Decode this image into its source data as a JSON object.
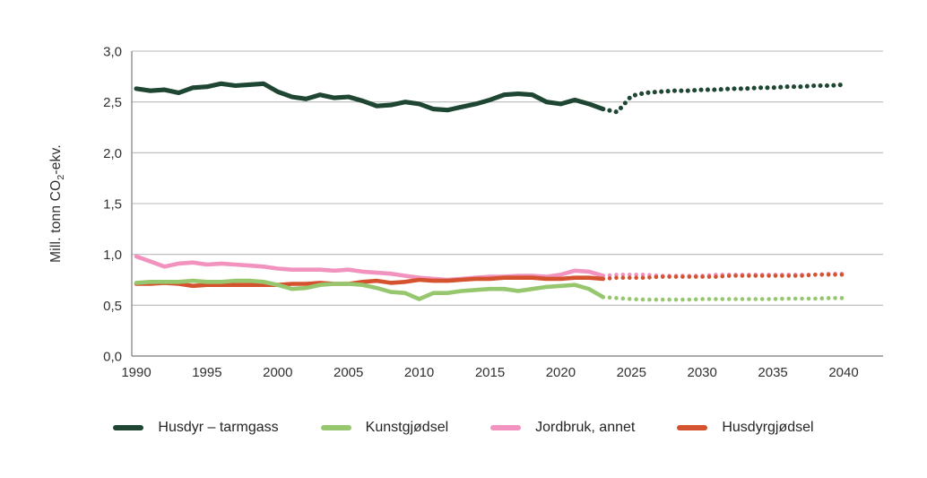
{
  "figure": {
    "y_axis_title": {
      "prefix": "Mill. tonn CO",
      "sub": "2",
      "suffix": "-ekv."
    }
  },
  "chart_data": {
    "type": "line",
    "title": "",
    "ylabel": "Mill. tonn CO2-ekv.",
    "xlabel": "",
    "ylim": [
      0,
      3
    ],
    "xlim": [
      1990,
      2040
    ],
    "grid": "horizontal",
    "gridline_color": "#b9b9b9",
    "axis_color": "#8f8f8f",
    "legend_position": "bottom",
    "decimal_style": "comma",
    "projection_style": "dotted lines from 2023 onward",
    "y_ticks": [
      {
        "v": 0.0,
        "label": "0,0"
      },
      {
        "v": 0.5,
        "label": "0,5"
      },
      {
        "v": 1.0,
        "label": "1,0"
      },
      {
        "v": 1.5,
        "label": "1,5"
      },
      {
        "v": 2.0,
        "label": "2,0"
      },
      {
        "v": 2.5,
        "label": "2,5"
      },
      {
        "v": 3.0,
        "label": "3,0"
      }
    ],
    "x_ticks": [
      {
        "v": 1990,
        "label": "1990"
      },
      {
        "v": 1995,
        "label": "1995"
      },
      {
        "v": 2000,
        "label": "2000"
      },
      {
        "v": 2005,
        "label": "2005"
      },
      {
        "v": 2010,
        "label": "2010"
      },
      {
        "v": 2015,
        "label": "2015"
      },
      {
        "v": 2020,
        "label": "2020"
      },
      {
        "v": 2025,
        "label": "2025"
      },
      {
        "v": 2030,
        "label": "2030"
      },
      {
        "v": 2035,
        "label": "2035"
      },
      {
        "v": 2040,
        "label": "2040"
      }
    ],
    "years_hist": [
      1990,
      1991,
      1992,
      1993,
      1994,
      1995,
      1996,
      1997,
      1998,
      1999,
      2000,
      2001,
      2002,
      2003,
      2004,
      2005,
      2006,
      2007,
      2008,
      2009,
      2010,
      2011,
      2012,
      2013,
      2014,
      2015,
      2016,
      2017,
      2018,
      2019,
      2020,
      2021,
      2022,
      2023
    ],
    "years_proj": [
      2023,
      2024,
      2025,
      2026,
      2027,
      2028,
      2029,
      2030,
      2031,
      2032,
      2033,
      2034,
      2035,
      2036,
      2037,
      2038,
      2039,
      2040
    ],
    "series": [
      {
        "name": "Husdyr – tarmgass",
        "color": "#1E4633",
        "hist": [
          2.63,
          2.61,
          2.62,
          2.59,
          2.64,
          2.65,
          2.68,
          2.66,
          2.67,
          2.68,
          2.6,
          2.55,
          2.53,
          2.57,
          2.54,
          2.55,
          2.51,
          2.46,
          2.47,
          2.5,
          2.48,
          2.43,
          2.42,
          2.45,
          2.48,
          2.52,
          2.57,
          2.58,
          2.57,
          2.5,
          2.48,
          2.52,
          2.48,
          2.43
        ],
        "proj": [
          2.43,
          2.4,
          2.56,
          2.59,
          2.6,
          2.61,
          2.61,
          2.62,
          2.62,
          2.63,
          2.63,
          2.64,
          2.64,
          2.65,
          2.65,
          2.66,
          2.66,
          2.67
        ]
      },
      {
        "name": "Kunstgjødsel",
        "color": "#96C76E",
        "hist": [
          0.72,
          0.73,
          0.73,
          0.73,
          0.74,
          0.73,
          0.73,
          0.74,
          0.74,
          0.73,
          0.7,
          0.66,
          0.67,
          0.7,
          0.71,
          0.71,
          0.7,
          0.67,
          0.63,
          0.62,
          0.56,
          0.62,
          0.62,
          0.64,
          0.65,
          0.66,
          0.66,
          0.64,
          0.66,
          0.68,
          0.69,
          0.7,
          0.66,
          0.58
        ],
        "proj": [
          0.58,
          0.57,
          0.56,
          0.555,
          0.555,
          0.555,
          0.555,
          0.56,
          0.56,
          0.56,
          0.56,
          0.56,
          0.56,
          0.565,
          0.565,
          0.565,
          0.57,
          0.57
        ]
      },
      {
        "name": "Jordbruk, annet",
        "color": "#F193BE",
        "hist": [
          0.98,
          0.93,
          0.88,
          0.91,
          0.92,
          0.9,
          0.91,
          0.9,
          0.89,
          0.88,
          0.86,
          0.85,
          0.85,
          0.85,
          0.84,
          0.85,
          0.83,
          0.82,
          0.81,
          0.79,
          0.77,
          0.76,
          0.75,
          0.76,
          0.77,
          0.78,
          0.78,
          0.79,
          0.79,
          0.78,
          0.8,
          0.84,
          0.83,
          0.79
        ],
        "proj": [
          0.79,
          0.8,
          0.8,
          0.8,
          0.79,
          0.79,
          0.79,
          0.79,
          0.8,
          0.8,
          0.8,
          0.8,
          0.8,
          0.8,
          0.8,
          0.8,
          0.81,
          0.81
        ]
      },
      {
        "name": "Husdyrgjødsel",
        "color": "#D5522F",
        "hist": [
          0.71,
          0.71,
          0.72,
          0.71,
          0.69,
          0.7,
          0.7,
          0.7,
          0.7,
          0.7,
          0.7,
          0.71,
          0.71,
          0.72,
          0.71,
          0.71,
          0.73,
          0.74,
          0.72,
          0.73,
          0.75,
          0.74,
          0.74,
          0.75,
          0.76,
          0.76,
          0.77,
          0.77,
          0.77,
          0.76,
          0.76,
          0.77,
          0.77,
          0.76
        ],
        "proj": [
          0.76,
          0.77,
          0.77,
          0.77,
          0.78,
          0.78,
          0.78,
          0.78,
          0.78,
          0.79,
          0.79,
          0.79,
          0.79,
          0.79,
          0.79,
          0.8,
          0.8,
          0.8
        ]
      }
    ]
  }
}
